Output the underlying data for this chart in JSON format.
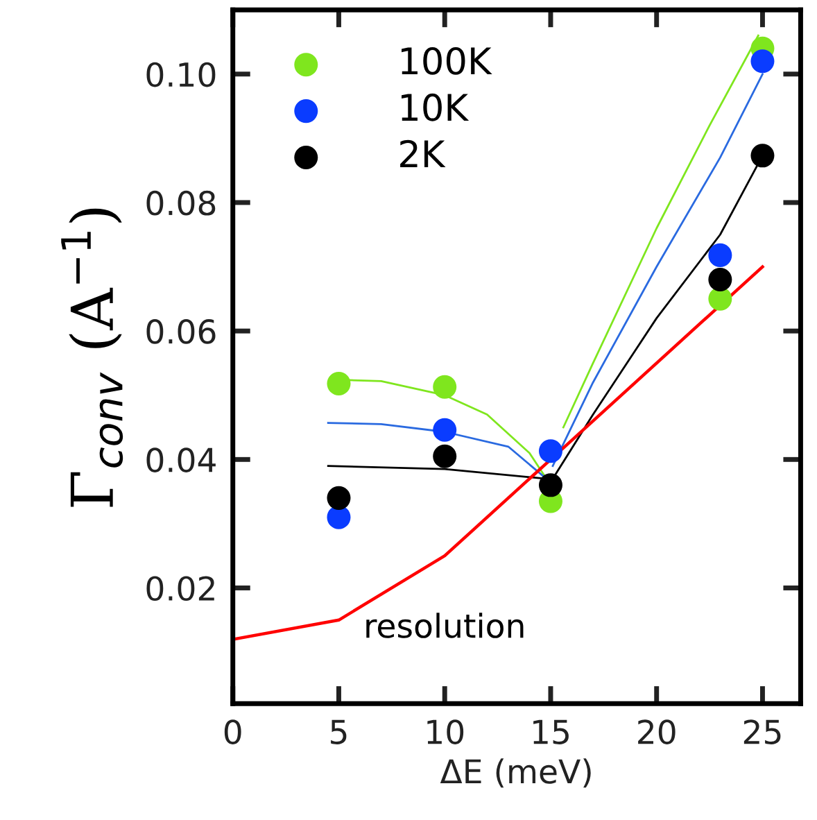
{
  "chart_data": {
    "type": "scatter",
    "xlabel": "ΔE (meV)",
    "ylabel": "Γ$_{conv}$ (A$^{−1}$)",
    "xlim": [
      0,
      26.8
    ],
    "ylim": [
      0.002,
      0.11
    ],
    "xticks": [
      0,
      5,
      10,
      15,
      20,
      25
    ],
    "yticks": [
      0.02,
      0.04,
      0.06,
      0.08,
      {
        "value": 0.1,
        "label": "0.10"
      }
    ],
    "legend": "top left",
    "grid": false,
    "marker": "circle",
    "annotations": [
      "resolution"
    ],
    "series": [
      {
        "name": "100K",
        "color": "#7fe61e",
        "x": [
          5,
          10,
          15,
          23,
          25
        ],
        "values": [
          0.0518,
          0.0513,
          0.0335,
          0.065,
          0.104
        ]
      },
      {
        "name": "10K",
        "color": "#0a3cff",
        "x": [
          5,
          10,
          15,
          23,
          25
        ],
        "values": [
          0.031,
          0.0446,
          0.0413,
          0.0718,
          0.102
        ]
      },
      {
        "name": "2K",
        "color": "#000000",
        "x": [
          5,
          10,
          15,
          23,
          25
        ],
        "values": [
          0.034,
          0.0405,
          0.036,
          0.068,
          0.0873
        ]
      },
      {
        "type": "line",
        "marker": "none",
        "color": "#7fe61e",
        "x": [
          5,
          7,
          10,
          12,
          14,
          14.8,
          14.9,
          15.6,
          17,
          20,
          22.5,
          24.8
        ],
        "values": [
          0.0524,
          0.0522,
          0.05,
          0.047,
          0.041,
          0.037,
          null,
          0.045,
          0.055,
          0.076,
          0.092,
          0.106
        ]
      },
      {
        "type": "line",
        "marker": "none",
        "color": "#2a6ae0",
        "x": [
          4.5,
          7,
          10,
          13,
          14.8,
          14.9,
          15.1,
          17,
          20,
          23,
          25
        ],
        "values": [
          0.0457,
          0.0455,
          0.0443,
          0.042,
          0.037,
          null,
          0.039,
          0.052,
          0.07,
          0.087,
          0.1
        ]
      },
      {
        "type": "line",
        "marker": "none",
        "color": "#000000",
        "x": [
          4.5,
          10,
          14.8,
          14.9,
          15.1,
          17,
          20,
          23,
          25
        ],
        "values": [
          0.039,
          0.0385,
          0.037,
          null,
          0.037,
          0.047,
          0.062,
          0.075,
          0.0873
        ]
      },
      {
        "type": "line",
        "marker": "none",
        "color": "#ff0000",
        "x": [
          0,
          5,
          10,
          15,
          25
        ],
        "values": [
          0.012,
          0.015,
          0.025,
          0.04,
          0.07
        ]
      }
    ]
  }
}
